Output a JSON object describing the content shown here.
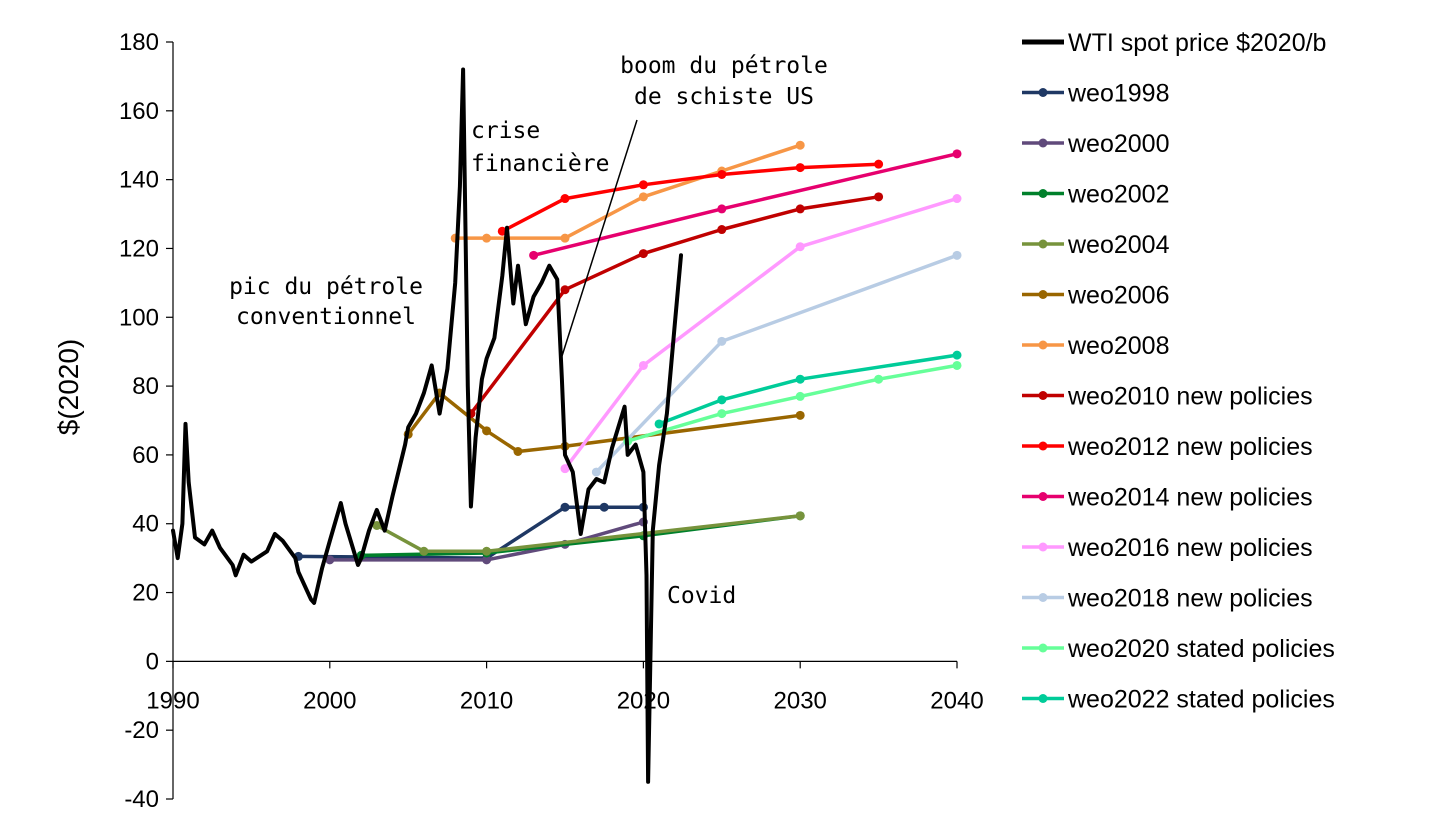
{
  "chart_data": {
    "type": "line",
    "title": "",
    "xlabel": "",
    "ylabel": "$(2020)",
    "xlim": [
      1990,
      2040
    ],
    "ylim": [
      -40,
      180
    ],
    "x_ticks": [
      "1990",
      "2000",
      "2010",
      "2020",
      "2030",
      "2040"
    ],
    "y_ticks": [
      "-40",
      "-20",
      "0",
      "20",
      "40",
      "60",
      "80",
      "100",
      "120",
      "140",
      "160",
      "180"
    ],
    "grid": false,
    "legend_position": "right",
    "annotations": [
      {
        "lines": [
          "pic du pétrole",
          "conventionnel"
        ]
      },
      {
        "lines": [
          "crise",
          "financière"
        ]
      },
      {
        "lines": [
          "boom du pétrole",
          "de schiste US"
        ]
      },
      {
        "lines": [
          "Covid"
        ]
      }
    ],
    "series": [
      {
        "name": "WTI spot price $2020/b",
        "color": "#000000",
        "markers": false,
        "points": [
          [
            1990,
            38
          ],
          [
            1990.3,
            30
          ],
          [
            1990.6,
            40
          ],
          [
            1990.8,
            69
          ],
          [
            1991,
            52
          ],
          [
            1991.4,
            36
          ],
          [
            1992,
            34
          ],
          [
            1992.5,
            38
          ],
          [
            1993,
            33
          ],
          [
            1993.8,
            28
          ],
          [
            1994,
            25
          ],
          [
            1994.5,
            31
          ],
          [
            1995,
            29
          ],
          [
            1996,
            32
          ],
          [
            1996.5,
            37
          ],
          [
            1997,
            35
          ],
          [
            1997.8,
            30
          ],
          [
            1998,
            26
          ],
          [
            1998.8,
            18
          ],
          [
            1999,
            17
          ],
          [
            1999.5,
            27
          ],
          [
            2000,
            35
          ],
          [
            2000.7,
            46
          ],
          [
            2001,
            40
          ],
          [
            2001.8,
            28
          ],
          [
            2002,
            30
          ],
          [
            2002.5,
            38
          ],
          [
            2003,
            44
          ],
          [
            2003.5,
            38
          ],
          [
            2004,
            48
          ],
          [
            2004.8,
            63
          ],
          [
            2005,
            68
          ],
          [
            2005.5,
            72
          ],
          [
            2006,
            78
          ],
          [
            2006.5,
            86
          ],
          [
            2007,
            72
          ],
          [
            2007.5,
            85
          ],
          [
            2008,
            110
          ],
          [
            2008.3,
            138
          ],
          [
            2008.5,
            172
          ],
          [
            2008.8,
            80
          ],
          [
            2009,
            45
          ],
          [
            2009.3,
            65
          ],
          [
            2009.7,
            82
          ],
          [
            2010,
            88
          ],
          [
            2010.5,
            94
          ],
          [
            2011,
            112
          ],
          [
            2011.3,
            126
          ],
          [
            2011.7,
            104
          ],
          [
            2012,
            115
          ],
          [
            2012.5,
            98
          ],
          [
            2013,
            106
          ],
          [
            2013.5,
            110
          ],
          [
            2014,
            115
          ],
          [
            2014.5,
            111
          ],
          [
            2014.8,
            82
          ],
          [
            2015,
            60
          ],
          [
            2015.5,
            55
          ],
          [
            2016,
            37
          ],
          [
            2016.5,
            50
          ],
          [
            2017,
            53
          ],
          [
            2017.5,
            52
          ],
          [
            2018,
            62
          ],
          [
            2018.8,
            74
          ],
          [
            2019,
            60
          ],
          [
            2019.5,
            63
          ],
          [
            2020,
            55
          ],
          [
            2020.2,
            25
          ],
          [
            2020.3,
            -35
          ],
          [
            2020.6,
            38
          ],
          [
            2021,
            57
          ],
          [
            2021.5,
            72
          ],
          [
            2022,
            98
          ],
          [
            2022.4,
            118
          ]
        ]
      },
      {
        "name": "weo1998",
        "color": "#1f3864",
        "markers": true,
        "points": [
          [
            1998,
            30.5
          ],
          [
            2010,
            30
          ],
          [
            2015,
            44.8
          ],
          [
            2017.5,
            44.8
          ],
          [
            2020,
            44.8
          ]
        ]
      },
      {
        "name": "weo2000",
        "color": "#604a7b",
        "markers": true,
        "points": [
          [
            2000,
            29.5
          ],
          [
            2010,
            29.5
          ],
          [
            2015,
            34
          ],
          [
            2020,
            40.5
          ]
        ]
      },
      {
        "name": "weo2002",
        "color": "#00802b",
        "markers": true,
        "points": [
          [
            2002,
            30.8
          ],
          [
            2010,
            31.5
          ],
          [
            2020,
            36.5
          ],
          [
            2030,
            42.3
          ]
        ]
      },
      {
        "name": "weo2004",
        "color": "#77933c",
        "markers": true,
        "points": [
          [
            2003,
            39.5
          ],
          [
            2006,
            32
          ],
          [
            2010,
            32
          ],
          [
            2030,
            42.3
          ]
        ]
      },
      {
        "name": "weo2006",
        "color": "#996600",
        "markers": true,
        "points": [
          [
            2005,
            66
          ],
          [
            2007,
            78
          ],
          [
            2010,
            67
          ],
          [
            2012,
            61
          ],
          [
            2015,
            62.5
          ],
          [
            2030,
            71.5
          ]
        ]
      },
      {
        "name": "weo2008",
        "color": "#f79646",
        "markers": true,
        "points": [
          [
            2008,
            123
          ],
          [
            2010,
            123
          ],
          [
            2015,
            123
          ],
          [
            2020,
            135
          ],
          [
            2025,
            142.5
          ],
          [
            2030,
            150
          ]
        ]
      },
      {
        "name": "weo2010 new policies",
        "color": "#c00000",
        "markers": true,
        "points": [
          [
            2009,
            72
          ],
          [
            2015,
            108
          ],
          [
            2020,
            118.5
          ],
          [
            2025,
            125.5
          ],
          [
            2030,
            131.5
          ],
          [
            2035,
            135
          ]
        ]
      },
      {
        "name": "weo2012 new policies",
        "color": "#ff0000",
        "markers": true,
        "points": [
          [
            2011,
            125
          ],
          [
            2015,
            134.5
          ],
          [
            2020,
            138.5
          ],
          [
            2025,
            141.5
          ],
          [
            2030,
            143.5
          ],
          [
            2035,
            144.5
          ]
        ]
      },
      {
        "name": "weo2014 new policies",
        "color": "#e6006e",
        "markers": true,
        "points": [
          [
            2013,
            118
          ],
          [
            2025,
            131.5
          ],
          [
            2040,
            147.5
          ]
        ]
      },
      {
        "name": "weo2016 new policies",
        "color": "#ff99ff",
        "markers": true,
        "points": [
          [
            2015,
            56
          ],
          [
            2020,
            86
          ],
          [
            2030,
            120.5
          ],
          [
            2040,
            134.5
          ]
        ]
      },
      {
        "name": "weo2018 new policies",
        "color": "#b8cce4",
        "markers": true,
        "points": [
          [
            2017,
            55
          ],
          [
            2025,
            93
          ],
          [
            2040,
            118
          ]
        ]
      },
      {
        "name": "weo2020 stated policies",
        "color": "#66ff99",
        "markers": true,
        "points": [
          [
            2019,
            64
          ],
          [
            2025,
            72
          ],
          [
            2030,
            77
          ],
          [
            2035,
            82
          ],
          [
            2040,
            86
          ]
        ]
      },
      {
        "name": "weo2022 stated policies",
        "color": "#00cc99",
        "markers": true,
        "points": [
          [
            2021,
            69
          ],
          [
            2025,
            76
          ],
          [
            2030,
            82
          ],
          [
            2040,
            89
          ]
        ]
      }
    ]
  }
}
